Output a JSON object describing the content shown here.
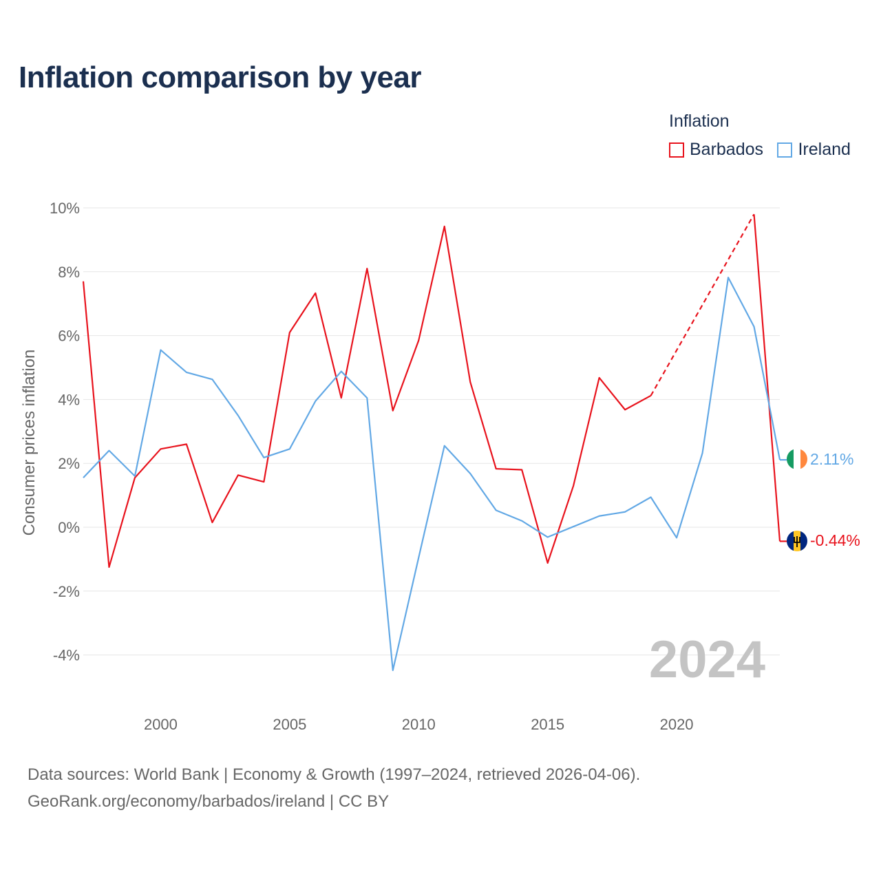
{
  "title": "Inflation comparison by year",
  "legend": {
    "title": "Inflation",
    "items": [
      {
        "label": "Barbados",
        "color": "#e8121c"
      },
      {
        "label": "Ireland",
        "color": "#62a8e5"
      }
    ]
  },
  "year_watermark": "2024",
  "source": {
    "line1": "Data sources: World Bank | Economy & Growth (1997–2024, retrieved 2026-04-06).",
    "line2": "GeoRank.org/economy/barbados/ireland | CC BY"
  },
  "chart_data": {
    "type": "line",
    "title": "Inflation comparison by year",
    "xlabel": "",
    "ylabel": "Consumer prices inflation",
    "xlim": [
      1997,
      2024
    ],
    "ylim": [
      -5,
      10
    ],
    "y_ticks": [
      10,
      8,
      6,
      4,
      2,
      0,
      -2,
      -4
    ],
    "y_tick_labels": [
      "10%",
      "8%",
      "6%",
      "4%",
      "2%",
      "0%",
      "-2%",
      "-4%"
    ],
    "x_ticks": [
      2000,
      2005,
      2010,
      2015,
      2020
    ],
    "x_tick_labels": [
      "2000",
      "2005",
      "2010",
      "2015",
      "2020"
    ],
    "grid": true,
    "legend_position": "top-right",
    "series": [
      {
        "name": "Barbados",
        "color": "#e8121c",
        "x": [
          1997,
          1998,
          1999,
          2000,
          2001,
          2002,
          2003,
          2004,
          2005,
          2006,
          2007,
          2008,
          2009,
          2010,
          2011,
          2012,
          2013,
          2014,
          2015,
          2016,
          2017,
          2018,
          2019,
          2023,
          2024
        ],
        "y": [
          7.7,
          -1.25,
          1.55,
          2.45,
          2.6,
          0.15,
          1.63,
          1.42,
          6.1,
          7.33,
          4.05,
          8.1,
          3.65,
          5.85,
          9.42,
          4.55,
          1.83,
          1.8,
          -1.12,
          1.3,
          4.68,
          3.68,
          4.12,
          9.8,
          -0.44
        ],
        "gap_years": [
          2020,
          2021,
          2022
        ],
        "end_label": "-0.44%"
      },
      {
        "name": "Ireland",
        "color": "#62a8e5",
        "x": [
          1997,
          1998,
          1999,
          2000,
          2001,
          2002,
          2003,
          2004,
          2005,
          2006,
          2007,
          2008,
          2009,
          2010,
          2011,
          2012,
          2013,
          2014,
          2015,
          2016,
          2017,
          2018,
          2019,
          2020,
          2021,
          2022,
          2023,
          2024
        ],
        "y": [
          1.55,
          2.4,
          1.6,
          5.55,
          4.85,
          4.63,
          3.5,
          2.18,
          2.45,
          3.95,
          4.88,
          4.05,
          -4.48,
          -0.95,
          2.55,
          1.68,
          0.53,
          0.2,
          -0.31,
          0.02,
          0.35,
          0.48,
          0.94,
          -0.33,
          2.32,
          7.82,
          6.28,
          2.11
        ],
        "end_label": "2.11%"
      }
    ]
  }
}
